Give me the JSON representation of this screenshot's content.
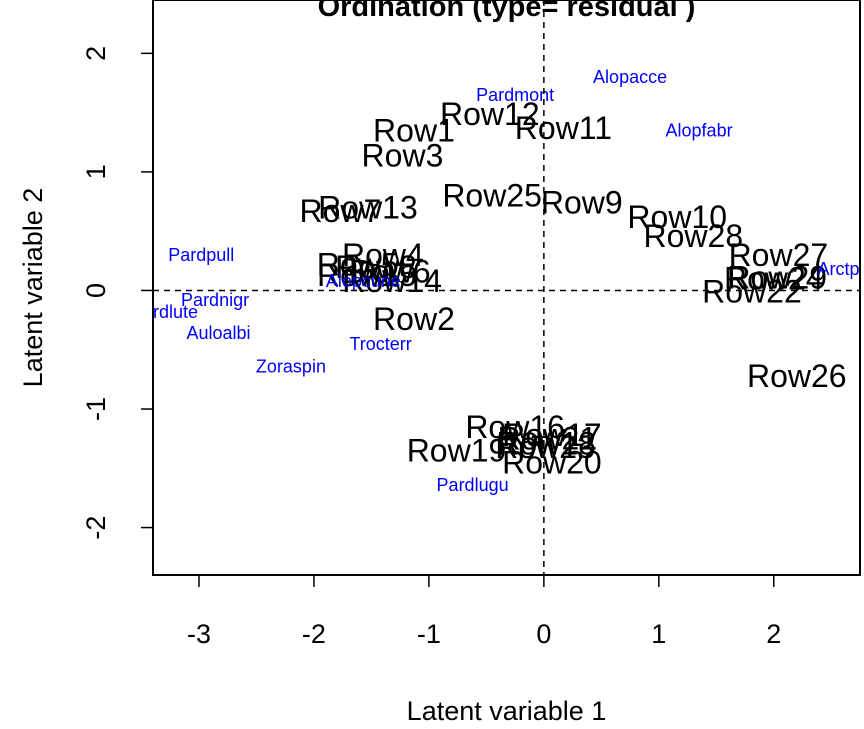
{
  "chart_data": {
    "type": "scatter",
    "title": "Ordination (type= residual )",
    "xlabel": "Latent variable 1",
    "ylabel": "Latent variable 2",
    "xlim": [
      -3.4,
      2.75
    ],
    "ylim": [
      -2.4,
      2.45
    ],
    "x_ticks": [
      -3,
      -2,
      -1,
      0,
      1,
      2
    ],
    "y_ticks": [
      -2,
      -1,
      0,
      1,
      2
    ],
    "x_tick_labels": [
      "-3",
      "-2",
      "-1",
      "0",
      "1",
      "2"
    ],
    "y_tick_labels": [
      "-2",
      "-1",
      "0",
      "1",
      "2"
    ],
    "reference_lines": {
      "x": 0,
      "y": 0,
      "style": "dashed"
    },
    "series": [
      {
        "name": "Rows",
        "color": "#000000",
        "points": [
          {
            "label": "Row1",
            "x": -1.13,
            "y": 1.35
          },
          {
            "label": "Row2",
            "x": -1.13,
            "y": -0.24
          },
          {
            "label": "Row3",
            "x": -1.23,
            "y": 1.14
          },
          {
            "label": "Row4",
            "x": -1.4,
            "y": 0.3
          },
          {
            "label": "Row5",
            "x": -1.62,
            "y": 0.22
          },
          {
            "label": "Row6",
            "x": -1.34,
            "y": 0.16
          },
          {
            "label": "Row7",
            "x": -1.77,
            "y": 0.67
          },
          {
            "label": "Row8",
            "x": -1.46,
            "y": 0.2
          },
          {
            "label": "Row9",
            "x": 0.33,
            "y": 0.74
          },
          {
            "label": "Row10",
            "x": 1.16,
            "y": 0.62
          },
          {
            "label": "Row11",
            "x": 0.17,
            "y": 1.37
          },
          {
            "label": "Row12",
            "x": -0.47,
            "y": 1.49
          },
          {
            "label": "Row13",
            "x": -1.53,
            "y": 0.7
          },
          {
            "label": "Row14",
            "x": -1.32,
            "y": 0.08
          },
          {
            "label": "Row15",
            "x": -1.54,
            "y": 0.13
          },
          {
            "label": "Row16",
            "x": -0.25,
            "y": -1.15
          },
          {
            "label": "Row17",
            "x": 0.07,
            "y": -1.22
          },
          {
            "label": "Row18",
            "x": 0.02,
            "y": -1.29
          },
          {
            "label": "Row19",
            "x": -0.76,
            "y": -1.35
          },
          {
            "label": "Row20",
            "x": 0.07,
            "y": -1.45
          },
          {
            "label": "Row21",
            "x": 0.03,
            "y": -1.25
          },
          {
            "label": "Row22",
            "x": 1.81,
            "y": -0.01
          },
          {
            "label": "Row23",
            "x": 0.01,
            "y": -1.32
          },
          {
            "label": "Row24",
            "x": 2.0,
            "y": 0.1
          },
          {
            "label": "Row25",
            "x": -0.45,
            "y": 0.8
          },
          {
            "label": "Row26",
            "x": 2.2,
            "y": -0.72
          },
          {
            "label": "Row27",
            "x": 2.04,
            "y": 0.3
          },
          {
            "label": "Row28",
            "x": 1.3,
            "y": 0.46
          },
          {
            "label": "Row29",
            "x": 2.03,
            "y": 0.11
          }
        ]
      },
      {
        "name": "Species",
        "color": "#0000ff",
        "points": [
          {
            "label": "Alopacce",
            "x": 0.75,
            "y": 1.8
          },
          {
            "label": "Pardmont",
            "x": -0.25,
            "y": 1.65
          },
          {
            "label": "Alopfabr",
            "x": 1.35,
            "y": 1.35
          },
          {
            "label": "Arctperi",
            "x": 2.65,
            "y": 0.18
          },
          {
            "label": "Pardpull",
            "x": -2.98,
            "y": 0.3
          },
          {
            "label": "Pardnigr",
            "x": -2.86,
            "y": -0.08
          },
          {
            "label": "Alopcune",
            "x": -1.57,
            "y": 0.08
          },
          {
            "label": "Pardlute",
            "x": -3.3,
            "y": -0.18
          },
          {
            "label": "Auloalbi",
            "x": -2.83,
            "y": -0.36
          },
          {
            "label": "Trocterr",
            "x": -1.42,
            "y": -0.45
          },
          {
            "label": "Zoraspin",
            "x": -2.2,
            "y": -0.64
          },
          {
            "label": "Pardlugu",
            "x": -0.62,
            "y": -1.64
          }
        ]
      }
    ],
    "grid": false,
    "legend": "none"
  }
}
